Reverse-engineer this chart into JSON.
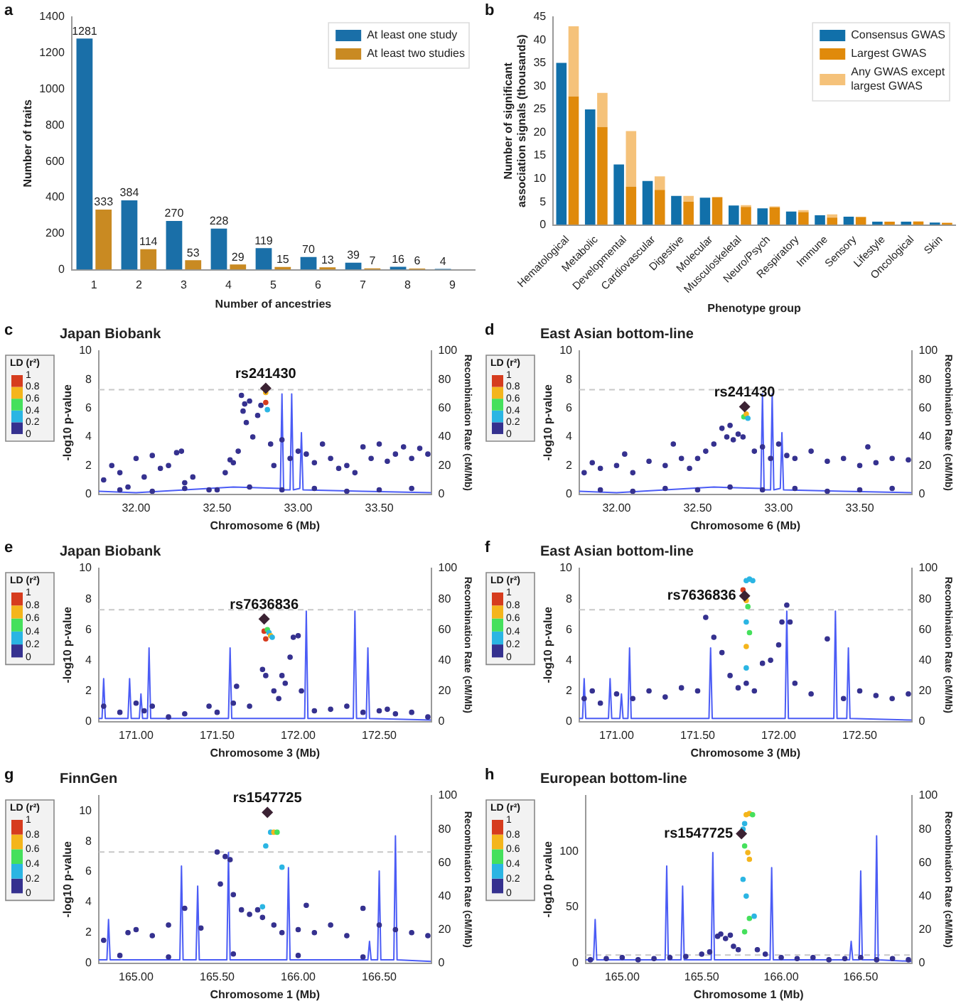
{
  "chart_data": [
    {
      "type": "bar",
      "annotations": [
        "a"
      ],
      "xlabel": "Number of ancestries",
      "ylabel": "Number of traits",
      "categories": [
        "1",
        "2",
        "3",
        "4",
        "5",
        "6",
        "7",
        "8",
        "9"
      ],
      "ylim": [
        0,
        1400
      ],
      "yticks": [
        0,
        200,
        400,
        600,
        800,
        1000,
        1200,
        1400
      ],
      "legend": "top right",
      "data_labels": true,
      "series": [
        {
          "name": "At least one study",
          "color": "#1a6fa8",
          "values": [
            1281,
            384,
            270,
            228,
            119,
            70,
            39,
            16,
            4
          ]
        },
        {
          "name": "At least two studies",
          "color": "#c98a22",
          "values": [
            333,
            114,
            53,
            29,
            15,
            13,
            7,
            6,
            null
          ]
        }
      ]
    },
    {
      "type": "bar",
      "annotations": [
        "b"
      ],
      "xlabel": "Phenotype group",
      "ylabel": "Number of significant association signals (thousands)",
      "categories": [
        "Hematological",
        "Metabolic",
        "Developmental",
        "Cardiovascular",
        "Digestive",
        "Molecular",
        "Musculoskeletal",
        "Neuro/Psych",
        "Respiratory",
        "Immune",
        "Sensory",
        "Lifestyle",
        "Oncological",
        "Skin"
      ],
      "ylim": [
        0,
        45
      ],
      "yticks": [
        0,
        5,
        10,
        15,
        20,
        25,
        30,
        35,
        40,
        45
      ],
      "legend": "top right",
      "series": [
        {
          "name": "Consensus GWAS",
          "color": "#1170aa",
          "values": [
            35.1,
            25,
            13.1,
            9.5,
            6.3,
            5.9,
            4.2,
            3.6,
            2.9,
            2.1,
            1.8,
            0.7,
            0.7,
            0.5
          ]
        },
        {
          "name": "Largest GWAS",
          "color": "#e08a0b",
          "values": [
            27.8,
            21.2,
            8.3,
            7.6,
            5.0,
            6.0,
            3.9,
            3.8,
            2.8,
            1.6,
            1.7,
            0.7,
            0.7,
            0.4
          ]
        },
        {
          "name": "Any GWAS except largest GWAS",
          "color": "#f5c27a",
          "base": [
            27.8,
            21.2,
            8.3,
            7.6,
            5.0,
            null,
            3.9,
            3.8,
            2.8,
            1.6,
            1.7,
            null,
            0.7,
            0.4
          ],
          "values": [
            15.2,
            7.4,
            12.0,
            2.9,
            1.3,
            null,
            0.4,
            0.2,
            0.4,
            0.7,
            0.1,
            null,
            0.1,
            0.1
          ]
        }
      ]
    },
    {
      "type": "scatter",
      "title": "Japan Biobank",
      "annotations": [
        "c",
        {
          "text": "rs241430",
          "x": 32.8,
          "y": 7.4
        }
      ],
      "xlabel": "Chromosome 6 (Mb)",
      "ylabel": "-log10 p-value",
      "y2label": "Recombination Rate (cM/Mb)",
      "clabel": "LD (r²)",
      "clim": [
        0,
        1
      ],
      "cticks": [
        0,
        0.2,
        0.4,
        0.6,
        0.8,
        1
      ],
      "xlim": [
        31.77,
        33.82
      ],
      "xticks": [
        {
          "value": 32,
          "label": "32.00"
        },
        {
          "value": 32.5,
          "label": "32.50"
        },
        {
          "value": 33,
          "label": "33.00"
        },
        {
          "value": 33.5,
          "label": "33.50"
        }
      ],
      "ylim": [
        0,
        10
      ],
      "yticks": [
        0,
        2,
        4,
        6,
        8,
        10
      ],
      "y2lim": [
        0,
        100
      ],
      "y2ticks": [
        0,
        20,
        40,
        60,
        80,
        100
      ],
      "ref_lines": [
        {
          "axis": "y",
          "value": 7.3,
          "color": "#c8c8c8",
          "line_style": "dashed"
        }
      ],
      "series": [
        {
          "marker": "circle",
          "colors": [
            "#35318f",
            "#35318f",
            "#35318f",
            "#35318f",
            "#35318f",
            "#35318f",
            "#35318f",
            "#35318f",
            "#35318f",
            "#35318f",
            "#35318f",
            "#35318f",
            "#35318f",
            "#35318f",
            "#35318f",
            "#35318f",
            "#35318f",
            "#35318f",
            "#35318f",
            "#35318f",
            "#35318f",
            "#35318f",
            "#35318f",
            "#35318f",
            "#35318f",
            "#35318f",
            "#f4b51c",
            "#d63c1e",
            "#2bb5e3",
            "#35318f",
            "#35318f",
            "#35318f",
            "#35318f",
            "#35318f",
            "#35318f",
            "#35318f",
            "#35318f",
            "#35318f",
            "#35318f",
            "#35318f",
            "#35318f",
            "#35318f",
            "#35318f",
            "#35318f",
            "#35318f",
            "#35318f",
            "#35318f",
            "#35318f",
            "#35318f",
            "#35318f",
            "#35318f",
            "#35318f",
            "#35318f",
            "#35318f",
            "#35318f",
            "#35318f",
            "#35318f",
            "#35318f",
            "#35318f",
            "#35318f"
          ],
          "x": [
            31.8,
            31.85,
            31.9,
            31.95,
            32.0,
            32.05,
            32.1,
            32.15,
            32.2,
            32.25,
            32.28,
            32.3,
            32.35,
            32.45,
            32.55,
            32.58,
            32.6,
            32.63,
            32.65,
            32.66,
            32.67,
            32.68,
            32.7,
            32.72,
            32.75,
            32.77,
            32.8,
            32.8,
            32.81,
            32.83,
            32.85,
            32.9,
            32.95,
            33.0,
            33.05,
            33.1,
            33.15,
            33.2,
            33.25,
            33.3,
            33.35,
            33.4,
            33.45,
            33.5,
            33.55,
            33.6,
            33.65,
            33.7,
            33.75,
            33.8,
            31.9,
            32.1,
            32.3,
            32.5,
            32.7,
            32.9,
            33.1,
            33.3,
            33.5,
            33.7
          ],
          "values": [
            1.0,
            2.0,
            1.5,
            0.5,
            2.5,
            1.2,
            2.7,
            1.8,
            2.0,
            2.9,
            3.0,
            0.8,
            1.2,
            0.3,
            1.5,
            2.4,
            2.2,
            3.0,
            6.9,
            5.8,
            6.3,
            5.0,
            6.5,
            4.0,
            5.5,
            6.2,
            7.1,
            6.4,
            5.9,
            3.5,
            2.0,
            3.8,
            2.5,
            3.0,
            2.8,
            2.2,
            3.5,
            2.5,
            1.8,
            2.0,
            1.5,
            3.3,
            2.5,
            3.5,
            2.3,
            2.8,
            3.3,
            2.5,
            3.2,
            2.8,
            0.3,
            0.2,
            0.4,
            0.3,
            0.5,
            0.3,
            0.4,
            0.2,
            0.3,
            0.4
          ]
        },
        {
          "color": "#3b2233",
          "marker": "diamond",
          "x": [
            32.8
          ],
          "values": [
            7.4
          ]
        },
        {
          "type": "line",
          "axis": "y2",
          "color": "#4b5cf5",
          "marker": "none",
          "x": [
            31.77,
            32.0,
            32.3,
            32.6,
            32.89,
            32.9,
            32.91,
            32.95,
            32.96,
            32.97,
            33.01,
            33.02,
            33.03,
            33.4,
            33.82
          ],
          "values": [
            2,
            1,
            3,
            5,
            4,
            70,
            3,
            3,
            70,
            3,
            4,
            43,
            3,
            2,
            1
          ]
        }
      ]
    },
    {
      "type": "scatter",
      "title": "East Asian bottom-line",
      "annotations": [
        "d",
        {
          "text": "rs241430",
          "x": 32.79,
          "y": 6.1
        }
      ],
      "xlabel": "Chromosome 6 (Mb)",
      "ylabel": "-log10 p-value",
      "y2label": "Recombination Rate (cM/Mb)",
      "clabel": "LD (r²)",
      "clim": [
        0,
        1
      ],
      "cticks": [
        0,
        0.2,
        0.4,
        0.6,
        0.8,
        1
      ],
      "xlim": [
        31.77,
        33.82
      ],
      "xticks": [
        {
          "value": 32,
          "label": "32.00"
        },
        {
          "value": 32.5,
          "label": "32.50"
        },
        {
          "value": 33,
          "label": "33.00"
        },
        {
          "value": 33.5,
          "label": "33.50"
        }
      ],
      "ylim": [
        0,
        10
      ],
      "yticks": [
        0,
        2,
        4,
        6,
        8,
        10
      ],
      "y2lim": [
        0,
        100
      ],
      "y2ticks": [
        0,
        20,
        40,
        60,
        80,
        100
      ],
      "ref_lines": [
        {
          "axis": "y",
          "value": 7.3,
          "color": "#c8c8c8",
          "line_style": "dashed"
        }
      ],
      "series": [
        {
          "marker": "circle",
          "colors": [
            "#35318f",
            "#35318f",
            "#35318f",
            "#35318f",
            "#35318f",
            "#35318f",
            "#35318f",
            "#35318f",
            "#35318f",
            "#35318f",
            "#35318f",
            "#35318f",
            "#35318f",
            "#35318f",
            "#35318f",
            "#35318f",
            "#35318f",
            "#35318f",
            "#35318f",
            "#35318f",
            "#45e05c",
            "#f4b51c",
            "#2bb5e3",
            "#35318f",
            "#35318f",
            "#35318f",
            "#35318f",
            "#35318f",
            "#35318f",
            "#35318f",
            "#35318f",
            "#35318f",
            "#35318f",
            "#35318f",
            "#35318f",
            "#35318f",
            "#35318f",
            "#35318f",
            "#35318f",
            "#35318f",
            "#35318f",
            "#35318f",
            "#35318f",
            "#35318f",
            "#35318f",
            "#35318f",
            "#35318f"
          ],
          "x": [
            31.8,
            31.85,
            31.9,
            32.0,
            32.05,
            32.1,
            32.2,
            32.3,
            32.35,
            32.4,
            32.45,
            32.5,
            32.55,
            32.6,
            32.65,
            32.68,
            32.7,
            32.72,
            32.75,
            32.78,
            32.785,
            32.8,
            32.81,
            32.85,
            32.9,
            32.95,
            33.0,
            33.05,
            33.1,
            33.2,
            33.3,
            33.4,
            33.5,
            33.55,
            33.6,
            33.7,
            33.8,
            31.9,
            32.1,
            32.3,
            32.5,
            32.7,
            32.9,
            33.1,
            33.3,
            33.5,
            33.7
          ],
          "values": [
            1.5,
            2.2,
            1.8,
            2.0,
            2.8,
            1.5,
            2.3,
            2.0,
            3.5,
            2.5,
            1.8,
            2.5,
            3.0,
            3.5,
            4.6,
            4.0,
            4.8,
            3.8,
            4.2,
            4.0,
            5.4,
            5.6,
            5.3,
            3.0,
            3.3,
            2.5,
            3.5,
            2.7,
            2.5,
            3.0,
            2.3,
            2.5,
            2.0,
            3.3,
            2.2,
            2.5,
            2.4,
            0.3,
            0.2,
            0.4,
            0.3,
            0.5,
            0.3,
            0.4,
            0.2,
            0.3,
            0.4
          ]
        },
        {
          "color": "#3b2233",
          "marker": "diamond",
          "x": [
            32.79
          ],
          "values": [
            6.1
          ]
        },
        {
          "type": "line",
          "axis": "y2",
          "color": "#4b5cf5",
          "marker": "none",
          "x": [
            31.77,
            32.0,
            32.3,
            32.6,
            32.89,
            32.9,
            32.91,
            32.95,
            32.96,
            32.97,
            33.01,
            33.02,
            33.03,
            33.4,
            33.82
          ],
          "values": [
            2,
            1,
            3,
            5,
            4,
            70,
            3,
            3,
            70,
            3,
            4,
            43,
            3,
            2,
            1
          ]
        }
      ]
    },
    {
      "type": "scatter",
      "title": "Japan Biobank",
      "annotations": [
        "e",
        {
          "text": "rs7636836",
          "x": 171.79,
          "y": 6.7
        }
      ],
      "xlabel": "Chromosome 3 (Mb)",
      "ylabel": "-log10 p-value",
      "y2label": "Recombination Rate (cM/Mb)",
      "clabel": "LD (r²)",
      "clim": [
        0,
        1
      ],
      "cticks": [
        0,
        0.2,
        0.4,
        0.6,
        0.8,
        1
      ],
      "xlim": [
        170.77,
        172.82
      ],
      "xticks": [
        {
          "value": 171,
          "label": "171.00"
        },
        {
          "value": 171.5,
          "label": "171.50"
        },
        {
          "value": 172,
          "label": "172.00"
        },
        {
          "value": 172.5,
          "label": "172.50"
        }
      ],
      "ylim": [
        0,
        10
      ],
      "yticks": [
        0,
        2,
        4,
        6,
        8,
        10
      ],
      "y2lim": [
        0,
        100
      ],
      "y2ticks": [
        0,
        20,
        40,
        60,
        80,
        100
      ],
      "ref_lines": [
        {
          "axis": "y",
          "value": 7.3,
          "color": "#c8c8c8",
          "line_style": "dashed"
        }
      ],
      "series": [
        {
          "marker": "circle",
          "colors": [
            "#35318f",
            "#35318f",
            "#35318f",
            "#35318f",
            "#35318f",
            "#35318f",
            "#35318f",
            "#35318f",
            "#35318f",
            "#35318f",
            "#35318f",
            "#35318f",
            "#35318f",
            "#35318f",
            "#35318f",
            "#35318f",
            "#35318f",
            "#35318f",
            "#35318f",
            "#35318f",
            "#35318f",
            "#35318f",
            "#35318f",
            "#35318f",
            "#35318f",
            "#35318f",
            "#35318f",
            "#35318f",
            "#35318f",
            "#35318f",
            "#35318f",
            "#d63c1e",
            "#45e05c",
            "#2bb5e3",
            "#f4b51c",
            "#2bb5e3",
            "#d63c1e"
          ],
          "x": [
            170.8,
            170.9,
            171.0,
            171.05,
            171.1,
            171.2,
            171.3,
            171.45,
            171.5,
            171.6,
            171.62,
            171.7,
            171.78,
            171.8,
            171.85,
            171.88,
            171.9,
            171.92,
            171.95,
            171.97,
            172.0,
            172.02,
            172.1,
            172.2,
            172.3,
            172.4,
            172.5,
            172.55,
            172.6,
            172.7,
            172.8,
            171.79,
            171.81,
            171.82,
            171.83,
            171.84,
            171.8
          ],
          "values": [
            1.0,
            0.6,
            1.2,
            0.7,
            1.0,
            0.3,
            0.5,
            1.0,
            0.6,
            1.2,
            2.3,
            1.0,
            3.4,
            3.0,
            2.0,
            1.5,
            3.0,
            2.5,
            4.2,
            5.5,
            5.6,
            2.0,
            0.7,
            0.8,
            1.0,
            0.6,
            0.7,
            0.8,
            0.5,
            0.6,
            0.3,
            5.9,
            6.0,
            5.8,
            5.6,
            5.5,
            5.4
          ]
        },
        {
          "color": "#3b2233",
          "marker": "diamond",
          "x": [
            171.79
          ],
          "values": [
            6.7
          ]
        },
        {
          "type": "line",
          "axis": "y2",
          "color": "#4b5cf5",
          "marker": "none",
          "x": [
            170.77,
            170.79,
            170.8,
            170.81,
            170.95,
            170.96,
            170.97,
            171.02,
            171.03,
            171.04,
            171.07,
            171.08,
            171.09,
            171.57,
            171.58,
            171.59,
            172.04,
            172.05,
            172.06,
            172.34,
            172.35,
            172.36,
            172.42,
            172.43,
            172.44,
            172.82
          ],
          "values": [
            2,
            2,
            28,
            2,
            2,
            28,
            2,
            2,
            18,
            2,
            2,
            48,
            2,
            2,
            48,
            2,
            2,
            72,
            2,
            2,
            72,
            2,
            2,
            48,
            2,
            1
          ]
        }
      ]
    },
    {
      "type": "scatter",
      "title": "East Asian bottom-line",
      "annotations": [
        "f",
        {
          "text": "rs7636836",
          "x": 171.79,
          "y": 8.2
        }
      ],
      "xlabel": "Chromosome 3 (Mb)",
      "ylabel": "-log10 p-value",
      "y2label": "Recombination Rate (cM/Mb)",
      "clabel": "LD (r²)",
      "clim": [
        0,
        1
      ],
      "cticks": [
        0,
        0.2,
        0.4,
        0.6,
        0.8,
        1
      ],
      "xlim": [
        170.77,
        172.82
      ],
      "xticks": [
        {
          "value": 171,
          "label": "171.00"
        },
        {
          "value": 171.5,
          "label": "171.50"
        },
        {
          "value": 172,
          "label": "172.00"
        },
        {
          "value": 172.5,
          "label": "172.50"
        }
      ],
      "ylim": [
        0,
        10
      ],
      "yticks": [
        0,
        2,
        4,
        6,
        8,
        10
      ],
      "y2lim": [
        0,
        100
      ],
      "y2ticks": [
        0,
        20,
        40,
        60,
        80,
        100
      ],
      "ref_lines": [
        {
          "axis": "y",
          "value": 7.3,
          "color": "#c8c8c8",
          "line_style": "dashed"
        }
      ],
      "series": [
        {
          "marker": "circle",
          "colors": [
            "#35318f",
            "#35318f",
            "#35318f",
            "#35318f",
            "#35318f",
            "#35318f",
            "#35318f",
            "#35318f",
            "#35318f",
            "#35318f",
            "#35318f",
            "#35318f",
            "#35318f",
            "#35318f",
            "#35318f",
            "#35318f",
            "#35318f",
            "#35318f",
            "#35318f",
            "#35318f",
            "#35318f",
            "#35318f",
            "#35318f",
            "#35318f",
            "#35318f",
            "#35318f",
            "#35318f",
            "#35318f",
            "#35318f",
            "#35318f",
            "#d63c1e",
            "#2bb5e3",
            "#2bb5e3",
            "#2bb5e3",
            "#f4b51c",
            "#45e05c",
            "#2bb5e3",
            "#45e05c",
            "#f4b51c",
            "#2bb5e3"
          ],
          "x": [
            170.8,
            170.85,
            170.9,
            171.0,
            171.1,
            171.2,
            171.3,
            171.4,
            171.5,
            171.55,
            171.6,
            171.65,
            171.7,
            171.75,
            171.8,
            171.85,
            171.9,
            171.95,
            172.0,
            172.02,
            172.05,
            172.07,
            172.1,
            172.2,
            172.3,
            172.4,
            172.5,
            172.6,
            172.7,
            172.8,
            171.78,
            171.8,
            171.82,
            171.84,
            171.8,
            171.81,
            171.8,
            171.82,
            171.8,
            171.8
          ],
          "values": [
            1.5,
            2.0,
            1.2,
            1.8,
            1.5,
            2.0,
            1.6,
            2.2,
            2.0,
            6.8,
            5.5,
            4.5,
            3.0,
            2.2,
            2.5,
            2.0,
            3.8,
            4.0,
            5.0,
            6.5,
            7.6,
            6.5,
            2.5,
            1.8,
            5.4,
            1.5,
            2.0,
            1.7,
            1.5,
            1.8,
            8.6,
            9.2,
            9.3,
            9.2,
            7.9,
            7.5,
            6.5,
            5.8,
            4.9,
            3.5
          ]
        },
        {
          "color": "#3b2233",
          "marker": "diamond",
          "x": [
            171.79
          ],
          "values": [
            8.2
          ]
        },
        {
          "type": "line",
          "axis": "y2",
          "color": "#4b5cf5",
          "marker": "none",
          "x": [
            170.77,
            170.79,
            170.8,
            170.81,
            170.95,
            170.96,
            170.97,
            171.02,
            171.03,
            171.04,
            171.07,
            171.08,
            171.09,
            171.57,
            171.58,
            171.59,
            172.04,
            172.05,
            172.06,
            172.34,
            172.35,
            172.36,
            172.42,
            172.43,
            172.44,
            172.82
          ],
          "values": [
            2,
            2,
            28,
            2,
            2,
            28,
            2,
            2,
            18,
            2,
            2,
            48,
            2,
            2,
            48,
            2,
            2,
            72,
            2,
            2,
            72,
            2,
            2,
            48,
            2,
            1
          ]
        }
      ]
    },
    {
      "type": "scatter",
      "title": "FinnGen",
      "annotations": [
        "g",
        {
          "text": "rs1547725",
          "x": 165.81,
          "y": 9.9
        }
      ],
      "xlabel": "Chromosome 1 (Mb)",
      "ylabel": "-log10 p-value",
      "y2label": "Recombination Rate (cM/Mb)",
      "clabel": "LD (r²)",
      "clim": [
        0,
        1
      ],
      "cticks": [
        0,
        0.2,
        0.4,
        0.6,
        0.8,
        1
      ],
      "xlim": [
        164.77,
        166.82
      ],
      "xticks": [
        {
          "value": 165,
          "label": "165.00"
        },
        {
          "value": 165.5,
          "label": "165.50"
        },
        {
          "value": 166,
          "label": "166.00"
        },
        {
          "value": 166.5,
          "label": "166.50"
        }
      ],
      "ylim": [
        0,
        11
      ],
      "yticks": [
        0,
        2,
        4,
        6,
        8,
        10
      ],
      "y2lim": [
        0,
        100
      ],
      "y2ticks": [
        0,
        20,
        40,
        60,
        80,
        100
      ],
      "ref_lines": [
        {
          "axis": "y",
          "value": 7.3,
          "color": "#c8c8c8",
          "line_style": "dashed"
        }
      ],
      "series": [
        {
          "marker": "circle",
          "colors": [
            "#35318f",
            "#35318f",
            "#35318f",
            "#35318f",
            "#35318f",
            "#35318f",
            "#35318f",
            "#35318f",
            "#35318f",
            "#35318f",
            "#35318f",
            "#35318f",
            "#35318f",
            "#35318f",
            "#35318f",
            "#35318f",
            "#35318f",
            "#35318f",
            "#35318f",
            "#35318f",
            "#35318f",
            "#35318f",
            "#35318f",
            "#35318f",
            "#35318f",
            "#35318f",
            "#35318f",
            "#35318f",
            "#2bb5e3",
            "#2bb5e3",
            "#f4b51c",
            "#45e05c",
            "#2bb5e3",
            "#2bb5e3",
            "#35318f",
            "#35318f",
            "#35318f",
            "#35318f",
            "#35318f"
          ],
          "x": [
            164.8,
            164.95,
            165.0,
            165.1,
            165.2,
            165.3,
            165.4,
            165.5,
            165.52,
            165.55,
            165.58,
            165.6,
            165.65,
            165.7,
            165.75,
            165.78,
            165.85,
            165.9,
            166.0,
            166.05,
            166.1,
            166.2,
            166.3,
            166.4,
            166.5,
            166.6,
            166.7,
            166.8,
            165.8,
            165.83,
            165.85,
            165.87,
            165.9,
            165.78,
            164.9,
            165.2,
            165.6,
            166.0,
            166.4
          ],
          "values": [
            1.5,
            2.0,
            2.2,
            1.8,
            2.5,
            3.6,
            2.3,
            7.3,
            5.2,
            7.0,
            6.8,
            4.5,
            3.5,
            3.2,
            3.5,
            3.0,
            2.5,
            2.0,
            2.2,
            3.8,
            2.0,
            2.5,
            1.8,
            3.6,
            2.5,
            2.2,
            2.0,
            1.8,
            7.7,
            8.6,
            8.6,
            8.6,
            6.3,
            3.7,
            0.5,
            0.4,
            0.6,
            0.5,
            0.4
          ]
        },
        {
          "color": "#3b2233",
          "marker": "diamond",
          "x": [
            165.81
          ],
          "values": [
            9.9
          ]
        },
        {
          "type": "line",
          "axis": "y2",
          "color": "#4b5cf5",
          "marker": "none",
          "x": [
            164.77,
            164.82,
            164.83,
            164.84,
            165.27,
            165.28,
            165.29,
            165.37,
            165.38,
            165.39,
            165.56,
            165.57,
            165.58,
            165.93,
            165.94,
            165.95,
            166.43,
            166.44,
            166.45,
            166.49,
            166.5,
            166.51,
            166.59,
            166.6,
            166.61,
            166.82
          ],
          "values": [
            2,
            2,
            26,
            2,
            2,
            58,
            2,
            2,
            46,
            2,
            2,
            66,
            2,
            2,
            57,
            2,
            2,
            13,
            2,
            2,
            55,
            2,
            2,
            76,
            2,
            1
          ]
        }
      ]
    },
    {
      "type": "scatter",
      "title": "European bottom-line",
      "annotations": [
        "h",
        {
          "text": "rs1547725",
          "x": 165.75,
          "y": 116
        }
      ],
      "xlabel": "Chromosome 1 (Mb)",
      "ylabel": "-log10 p-value",
      "y2label": "Recombination Rate (cM/Mb)",
      "clabel": "LD (r²)",
      "clim": [
        0,
        1
      ],
      "cticks": [
        0,
        0.2,
        0.4,
        0.6,
        0.8,
        1
      ],
      "xlim": [
        164.77,
        166.82
      ],
      "xticks": [
        {
          "value": 165,
          "label": "165.00"
        },
        {
          "value": 165.5,
          "label": "165.50"
        },
        {
          "value": 166,
          "label": "166.00"
        },
        {
          "value": 166.5,
          "label": "166.50"
        }
      ],
      "ylim": [
        0,
        150
      ],
      "yticks": [
        0,
        50,
        100
      ],
      "y2lim": [
        0,
        100
      ],
      "y2ticks": [
        0,
        20,
        40,
        60,
        80,
        100
      ],
      "ref_lines": [
        {
          "axis": "y",
          "value": 7.3,
          "color": "#c8c8c8",
          "line_style": "dashed"
        }
      ],
      "series": [
        {
          "marker": "circle",
          "colors": [
            "#35318f",
            "#35318f",
            "#35318f",
            "#35318f",
            "#35318f",
            "#35318f",
            "#35318f",
            "#35318f",
            "#35318f",
            "#35318f",
            "#35318f",
            "#35318f",
            "#35318f",
            "#35318f",
            "#35318f",
            "#35318f",
            "#35318f",
            "#35318f",
            "#35318f",
            "#35318f",
            "#35318f",
            "#35318f",
            "#35318f",
            "#35318f",
            "#35318f",
            "#35318f",
            "#f4b51c",
            "#f4b51c",
            "#45e05c",
            "#2bb5e3",
            "#2bb5e3",
            "#f4b51c",
            "#f4b51c",
            "#45e05c",
            "#2bb5e3",
            "#2bb5e3",
            "#45e05c",
            "#2bb5e3",
            "#45e05c"
          ],
          "x": [
            164.8,
            164.9,
            165.0,
            165.1,
            165.2,
            165.3,
            165.4,
            165.5,
            165.55,
            165.6,
            165.62,
            165.65,
            165.68,
            165.7,
            165.73,
            165.85,
            165.9,
            166.0,
            166.1,
            166.2,
            166.3,
            166.4,
            166.5,
            166.6,
            166.7,
            166.8,
            165.78,
            165.8,
            165.82,
            165.77,
            165.76,
            165.79,
            165.8,
            165.77,
            165.76,
            165.78,
            165.8,
            165.83,
            165.77
          ],
          "values": [
            3,
            4,
            5,
            3,
            4,
            5,
            6,
            8,
            10,
            24,
            26,
            22,
            25,
            15,
            12,
            12,
            8,
            5,
            4,
            5,
            3,
            4,
            5,
            3,
            4,
            3,
            133,
            134,
            133,
            125,
            120,
            99,
            93,
            105,
            75,
            60,
            40,
            42,
            28
          ]
        },
        {
          "color": "#3b2233",
          "marker": "diamond",
          "x": [
            165.75
          ],
          "values": [
            116
          ]
        },
        {
          "type": "line",
          "axis": "y2",
          "color": "#4b5cf5",
          "marker": "none",
          "x": [
            164.77,
            164.82,
            164.83,
            164.84,
            165.27,
            165.28,
            165.29,
            165.37,
            165.38,
            165.39,
            165.56,
            165.57,
            165.58,
            165.93,
            165.94,
            165.95,
            166.43,
            166.44,
            166.45,
            166.49,
            166.5,
            166.51,
            166.59,
            166.6,
            166.61,
            166.82
          ],
          "values": [
            2,
            2,
            26,
            2,
            2,
            58,
            2,
            2,
            46,
            2,
            2,
            66,
            2,
            2,
            57,
            2,
            2,
            13,
            2,
            2,
            55,
            2,
            2,
            76,
            2,
            1
          ]
        }
      ]
    }
  ]
}
